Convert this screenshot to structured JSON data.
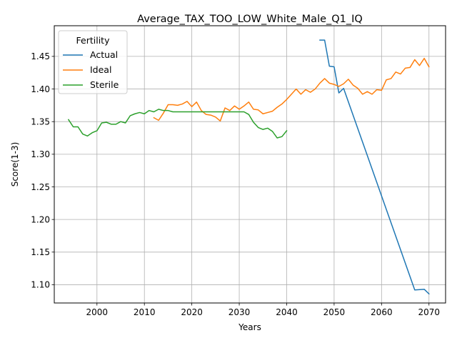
{
  "chart_data": {
    "type": "line",
    "title": "Average_TAX_TOO_LOW_White_Male_Q1_IQ",
    "xlabel": "Years",
    "ylabel": "Score(1-3)",
    "xlim": [
      1991,
      2073.5
    ],
    "ylim": [
      1.072,
      1.497
    ],
    "xticks": [
      2000,
      2010,
      2020,
      2030,
      2040,
      2050,
      2060,
      2070
    ],
    "yticks": [
      1.1,
      1.15,
      1.2,
      1.25,
      1.3,
      1.35,
      1.4,
      1.45
    ],
    "grid": true,
    "legend": {
      "title": "Fertility",
      "placement": "upper-left"
    },
    "series": [
      {
        "name": "Actual",
        "color": "#1f77b4",
        "points": [
          [
            2047,
            1.475
          ],
          [
            2048,
            1.475
          ],
          [
            2049,
            1.435
          ],
          [
            2050,
            1.434
          ],
          [
            2051,
            1.394
          ],
          [
            2052,
            1.401
          ],
          [
            2067,
            1.092
          ],
          [
            2069,
            1.093
          ],
          [
            2070,
            1.086
          ]
        ]
      },
      {
        "name": "Ideal",
        "color": "#ff7f0e",
        "points": [
          [
            2012,
            1.356
          ],
          [
            2013,
            1.352
          ],
          [
            2014,
            1.363
          ],
          [
            2015,
            1.376
          ],
          [
            2016,
            1.376
          ],
          [
            2017,
            1.375
          ],
          [
            2018,
            1.377
          ],
          [
            2019,
            1.381
          ],
          [
            2020,
            1.373
          ],
          [
            2021,
            1.38
          ],
          [
            2022,
            1.367
          ],
          [
            2023,
            1.361
          ],
          [
            2024,
            1.36
          ],
          [
            2025,
            1.357
          ],
          [
            2026,
            1.351
          ],
          [
            2027,
            1.371
          ],
          [
            2028,
            1.367
          ],
          [
            2029,
            1.374
          ],
          [
            2030,
            1.369
          ],
          [
            2031,
            1.374
          ],
          [
            2032,
            1.38
          ],
          [
            2033,
            1.369
          ],
          [
            2034,
            1.368
          ],
          [
            2035,
            1.362
          ],
          [
            2036,
            1.364
          ],
          [
            2037,
            1.366
          ],
          [
            2038,
            1.372
          ],
          [
            2039,
            1.377
          ],
          [
            2040,
            1.384
          ],
          [
            2041,
            1.392
          ],
          [
            2042,
            1.4
          ],
          [
            2043,
            1.392
          ],
          [
            2044,
            1.399
          ],
          [
            2045,
            1.395
          ],
          [
            2046,
            1.4
          ],
          [
            2047,
            1.409
          ],
          [
            2048,
            1.416
          ],
          [
            2049,
            1.409
          ],
          [
            2050,
            1.407
          ],
          [
            2051,
            1.404
          ],
          [
            2052,
            1.408
          ],
          [
            2053,
            1.415
          ],
          [
            2054,
            1.406
          ],
          [
            2055,
            1.401
          ],
          [
            2056,
            1.392
          ],
          [
            2057,
            1.396
          ],
          [
            2058,
            1.392
          ],
          [
            2059,
            1.399
          ],
          [
            2060,
            1.398
          ],
          [
            2061,
            1.414
          ],
          [
            2062,
            1.416
          ],
          [
            2063,
            1.426
          ],
          [
            2064,
            1.423
          ],
          [
            2065,
            1.432
          ],
          [
            2066,
            1.433
          ],
          [
            2067,
            1.445
          ],
          [
            2068,
            1.436
          ],
          [
            2069,
            1.447
          ],
          [
            2070,
            1.434
          ]
        ]
      },
      {
        "name": "Sterile",
        "color": "#2ca02c",
        "points": [
          [
            1994,
            1.353
          ],
          [
            1995,
            1.342
          ],
          [
            1996,
            1.342
          ],
          [
            1997,
            1.331
          ],
          [
            1998,
            1.328
          ],
          [
            1999,
            1.333
          ],
          [
            2000,
            1.336
          ],
          [
            2001,
            1.348
          ],
          [
            2002,
            1.349
          ],
          [
            2003,
            1.346
          ],
          [
            2004,
            1.346
          ],
          [
            2005,
            1.35
          ],
          [
            2006,
            1.348
          ],
          [
            2007,
            1.359
          ],
          [
            2008,
            1.362
          ],
          [
            2009,
            1.364
          ],
          [
            2010,
            1.362
          ],
          [
            2011,
            1.367
          ],
          [
            2012,
            1.365
          ],
          [
            2013,
            1.369
          ],
          [
            2014,
            1.367
          ],
          [
            2015,
            1.367
          ],
          [
            2016,
            1.365
          ],
          [
            2017,
            1.365
          ],
          [
            2018,
            1.365
          ],
          [
            2019,
            1.365
          ],
          [
            2020,
            1.365
          ],
          [
            2021,
            1.365
          ],
          [
            2022,
            1.365
          ],
          [
            2023,
            1.365
          ],
          [
            2024,
            1.365
          ],
          [
            2025,
            1.365
          ],
          [
            2026,
            1.365
          ],
          [
            2027,
            1.365
          ],
          [
            2028,
            1.365
          ],
          [
            2029,
            1.365
          ],
          [
            2030,
            1.365
          ],
          [
            2031,
            1.365
          ],
          [
            2032,
            1.361
          ],
          [
            2033,
            1.349
          ],
          [
            2034,
            1.341
          ],
          [
            2035,
            1.338
          ],
          [
            2036,
            1.34
          ],
          [
            2037,
            1.335
          ],
          [
            2038,
            1.325
          ],
          [
            2039,
            1.327
          ],
          [
            2040,
            1.336
          ]
        ]
      }
    ]
  }
}
